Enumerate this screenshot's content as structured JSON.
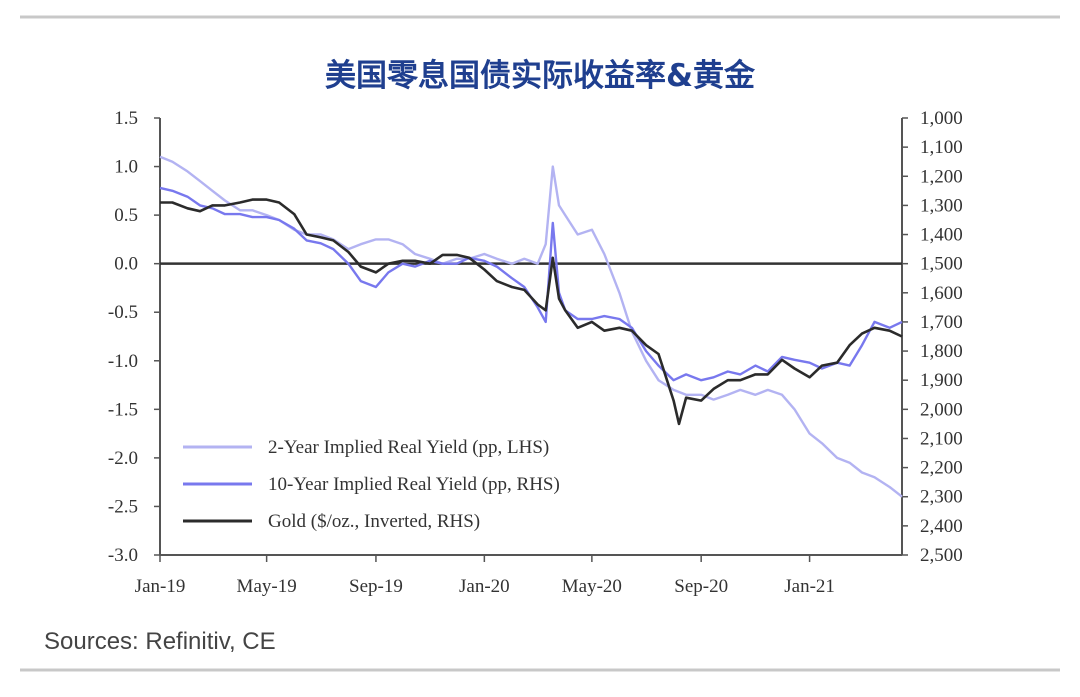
{
  "chart_data": {
    "type": "line",
    "title": "美国零息国债实际收益率&黄金",
    "source": "Sources: Refinitiv, CE",
    "x_tick_labels": [
      "Jan-19",
      "May-19",
      "Sep-19",
      "Jan-20",
      "May-20",
      "Sep-20",
      "Jan-21"
    ],
    "x_range": [
      "2019-01-01",
      "2021-04-15"
    ],
    "left_axis": {
      "ylim": [
        -3.0,
        1.5
      ],
      "ticks": [
        1.5,
        1.0,
        0.5,
        0.0,
        -0.5,
        -1.0,
        -1.5,
        -2.0,
        -2.5,
        -3.0
      ],
      "tick_labels": [
        "1.5",
        "1.0",
        "0.5",
        "0.0",
        "-0.5",
        "-1.0",
        "-1.5",
        "-2.0",
        "-2.5",
        "-3.0"
      ]
    },
    "right_axis": {
      "inverted": true,
      "ylim": [
        1000,
        2500
      ],
      "ticks": [
        1000,
        1100,
        1200,
        1300,
        1400,
        1500,
        1600,
        1700,
        1800,
        1900,
        2000,
        2100,
        2200,
        2300,
        2400,
        2500
      ],
      "tick_labels": [
        "1,000",
        "1,100",
        "1,200",
        "1,300",
        "1,400",
        "1,500",
        "1,600",
        "1,700",
        "1,800",
        "1,900",
        "2,000",
        "2,100",
        "2,200",
        "2,300",
        "2,400",
        "2,500"
      ]
    },
    "zero_line": 0.0,
    "legend_position": "bottom-left",
    "series": [
      {
        "name": "2-Year Implied Real Yield (pp, LHS)",
        "axis": "left",
        "color": "#b3b3f2",
        "points": [
          [
            "2019-01-01",
            1.1
          ],
          [
            "2019-01-15",
            1.05
          ],
          [
            "2019-02-01",
            0.95
          ],
          [
            "2019-02-15",
            0.85
          ],
          [
            "2019-03-01",
            0.75
          ],
          [
            "2019-03-15",
            0.65
          ],
          [
            "2019-04-01",
            0.55
          ],
          [
            "2019-04-15",
            0.55
          ],
          [
            "2019-05-01",
            0.5
          ],
          [
            "2019-05-15",
            0.45
          ],
          [
            "2019-06-01",
            0.35
          ],
          [
            "2019-06-15",
            0.3
          ],
          [
            "2019-07-01",
            0.3
          ],
          [
            "2019-07-15",
            0.25
          ],
          [
            "2019-08-01",
            0.15
          ],
          [
            "2019-08-15",
            0.2
          ],
          [
            "2019-09-01",
            0.25
          ],
          [
            "2019-09-15",
            0.25
          ],
          [
            "2019-10-01",
            0.2
          ],
          [
            "2019-10-15",
            0.1
          ],
          [
            "2019-11-01",
            0.05
          ],
          [
            "2019-11-15",
            0.0
          ],
          [
            "2019-12-01",
            0.05
          ],
          [
            "2019-12-15",
            0.05
          ],
          [
            "2020-01-01",
            0.1
          ],
          [
            "2020-01-15",
            0.05
          ],
          [
            "2020-02-01",
            0.0
          ],
          [
            "2020-02-15",
            0.05
          ],
          [
            "2020-03-01",
            0.0
          ],
          [
            "2020-03-10",
            0.2
          ],
          [
            "2020-03-18",
            1.0
          ],
          [
            "2020-03-25",
            0.6
          ],
          [
            "2020-04-01",
            0.5
          ],
          [
            "2020-04-15",
            0.3
          ],
          [
            "2020-05-01",
            0.35
          ],
          [
            "2020-05-15",
            0.1
          ],
          [
            "2020-06-01",
            -0.3
          ],
          [
            "2020-06-15",
            -0.7
          ],
          [
            "2020-07-01",
            -1.0
          ],
          [
            "2020-07-15",
            -1.2
          ],
          [
            "2020-08-01",
            -1.3
          ],
          [
            "2020-08-15",
            -1.35
          ],
          [
            "2020-09-01",
            -1.35
          ],
          [
            "2020-09-15",
            -1.4
          ],
          [
            "2020-10-01",
            -1.35
          ],
          [
            "2020-10-15",
            -1.3
          ],
          [
            "2020-11-01",
            -1.35
          ],
          [
            "2020-11-15",
            -1.3
          ],
          [
            "2020-12-01",
            -1.35
          ],
          [
            "2020-12-15",
            -1.5
          ],
          [
            "2021-01-01",
            -1.75
          ],
          [
            "2021-01-15",
            -1.85
          ],
          [
            "2021-02-01",
            -2.0
          ],
          [
            "2021-02-15",
            -2.05
          ],
          [
            "2021-03-01",
            -2.15
          ],
          [
            "2021-03-15",
            -2.2
          ],
          [
            "2021-04-01",
            -2.3
          ],
          [
            "2021-04-15",
            -2.4
          ]
        ]
      },
      {
        "name": "10-Year Implied Real Yield (pp, RHS)",
        "axis": "right",
        "color": "#7878ee",
        "points": [
          [
            "2019-01-01",
            1240
          ],
          [
            "2019-01-15",
            1250
          ],
          [
            "2019-02-01",
            1270
          ],
          [
            "2019-02-15",
            1300
          ],
          [
            "2019-03-01",
            1310
          ],
          [
            "2019-03-15",
            1330
          ],
          [
            "2019-04-01",
            1330
          ],
          [
            "2019-04-15",
            1340
          ],
          [
            "2019-05-01",
            1340
          ],
          [
            "2019-05-15",
            1350
          ],
          [
            "2019-06-01",
            1380
          ],
          [
            "2019-06-15",
            1420
          ],
          [
            "2019-07-01",
            1430
          ],
          [
            "2019-07-15",
            1450
          ],
          [
            "2019-08-01",
            1500
          ],
          [
            "2019-08-15",
            1560
          ],
          [
            "2019-09-01",
            1580
          ],
          [
            "2019-09-15",
            1530
          ],
          [
            "2019-10-01",
            1500
          ],
          [
            "2019-10-15",
            1510
          ],
          [
            "2019-11-01",
            1490
          ],
          [
            "2019-11-15",
            1500
          ],
          [
            "2019-12-01",
            1500
          ],
          [
            "2019-12-15",
            1480
          ],
          [
            "2020-01-01",
            1490
          ],
          [
            "2020-01-15",
            1510
          ],
          [
            "2020-02-01",
            1550
          ],
          [
            "2020-02-15",
            1580
          ],
          [
            "2020-03-01",
            1650
          ],
          [
            "2020-03-10",
            1700
          ],
          [
            "2020-03-18",
            1360
          ],
          [
            "2020-03-25",
            1600
          ],
          [
            "2020-04-01",
            1660
          ],
          [
            "2020-04-15",
            1690
          ],
          [
            "2020-05-01",
            1690
          ],
          [
            "2020-05-15",
            1680
          ],
          [
            "2020-06-01",
            1690
          ],
          [
            "2020-06-15",
            1720
          ],
          [
            "2020-07-01",
            1800
          ],
          [
            "2020-07-15",
            1850
          ],
          [
            "2020-08-01",
            1900
          ],
          [
            "2020-08-15",
            1880
          ],
          [
            "2020-09-01",
            1900
          ],
          [
            "2020-09-15",
            1890
          ],
          [
            "2020-10-01",
            1870
          ],
          [
            "2020-10-15",
            1880
          ],
          [
            "2020-11-01",
            1850
          ],
          [
            "2020-11-15",
            1870
          ],
          [
            "2020-12-01",
            1820
          ],
          [
            "2020-12-15",
            1830
          ],
          [
            "2021-01-01",
            1840
          ],
          [
            "2021-01-15",
            1860
          ],
          [
            "2021-02-01",
            1840
          ],
          [
            "2021-02-15",
            1850
          ],
          [
            "2021-03-01",
            1780
          ],
          [
            "2021-03-15",
            1700
          ],
          [
            "2021-04-01",
            1720
          ],
          [
            "2021-04-15",
            1700
          ]
        ]
      },
      {
        "name": "Gold ($/oz., Inverted, RHS)",
        "axis": "right",
        "color": "#2b2b2b",
        "points": [
          [
            "2019-01-01",
            1290
          ],
          [
            "2019-01-15",
            1290
          ],
          [
            "2019-02-01",
            1310
          ],
          [
            "2019-02-15",
            1320
          ],
          [
            "2019-03-01",
            1300
          ],
          [
            "2019-03-15",
            1300
          ],
          [
            "2019-04-01",
            1290
          ],
          [
            "2019-04-15",
            1280
          ],
          [
            "2019-05-01",
            1280
          ],
          [
            "2019-05-15",
            1290
          ],
          [
            "2019-06-01",
            1330
          ],
          [
            "2019-06-15",
            1400
          ],
          [
            "2019-07-01",
            1410
          ],
          [
            "2019-07-15",
            1420
          ],
          [
            "2019-08-01",
            1460
          ],
          [
            "2019-08-15",
            1510
          ],
          [
            "2019-09-01",
            1530
          ],
          [
            "2019-09-15",
            1500
          ],
          [
            "2019-10-01",
            1490
          ],
          [
            "2019-10-15",
            1490
          ],
          [
            "2019-11-01",
            1500
          ],
          [
            "2019-11-15",
            1470
          ],
          [
            "2019-12-01",
            1470
          ],
          [
            "2019-12-15",
            1480
          ],
          [
            "2020-01-01",
            1520
          ],
          [
            "2020-01-15",
            1560
          ],
          [
            "2020-02-01",
            1580
          ],
          [
            "2020-02-15",
            1590
          ],
          [
            "2020-03-01",
            1640
          ],
          [
            "2020-03-10",
            1660
          ],
          [
            "2020-03-18",
            1480
          ],
          [
            "2020-03-25",
            1620
          ],
          [
            "2020-04-01",
            1660
          ],
          [
            "2020-04-15",
            1720
          ],
          [
            "2020-05-01",
            1700
          ],
          [
            "2020-05-15",
            1730
          ],
          [
            "2020-06-01",
            1720
          ],
          [
            "2020-06-15",
            1730
          ],
          [
            "2020-07-01",
            1780
          ],
          [
            "2020-07-15",
            1810
          ],
          [
            "2020-08-01",
            1970
          ],
          [
            "2020-08-07",
            2050
          ],
          [
            "2020-08-15",
            1960
          ],
          [
            "2020-09-01",
            1970
          ],
          [
            "2020-09-15",
            1930
          ],
          [
            "2020-10-01",
            1900
          ],
          [
            "2020-10-15",
            1900
          ],
          [
            "2020-11-01",
            1880
          ],
          [
            "2020-11-15",
            1880
          ],
          [
            "2020-12-01",
            1830
          ],
          [
            "2020-12-15",
            1860
          ],
          [
            "2021-01-01",
            1890
          ],
          [
            "2021-01-15",
            1850
          ],
          [
            "2021-02-01",
            1840
          ],
          [
            "2021-02-15",
            1780
          ],
          [
            "2021-03-01",
            1740
          ],
          [
            "2021-03-15",
            1720
          ],
          [
            "2021-04-01",
            1730
          ],
          [
            "2021-04-15",
            1750
          ]
        ]
      }
    ]
  }
}
